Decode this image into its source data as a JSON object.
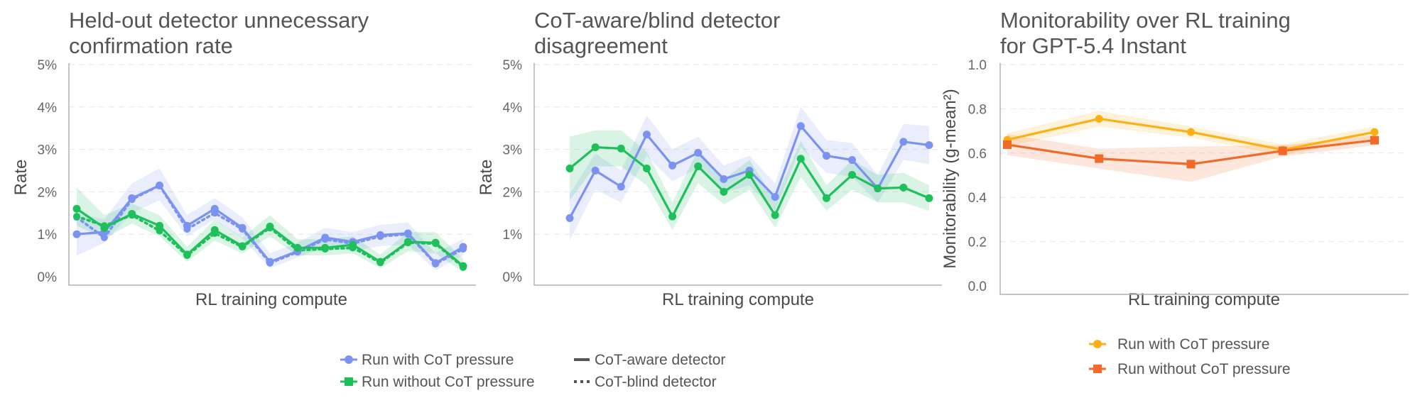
{
  "colors": {
    "blue": "#7b93ef",
    "green": "#1fbf5c",
    "yellow": "#fbb016",
    "orange": "#f26a2a",
    "legend_line": "#555555"
  },
  "chart_data": [
    {
      "type": "line",
      "title_lines": [
        "Held-out detector unnecessary",
        "confirmation rate"
      ],
      "xlabel": "RL training compute",
      "ylabel": "Rate",
      "ylim": [
        0,
        5
      ],
      "ytick_values": [
        0,
        1,
        2,
        3,
        4,
        5
      ],
      "ytick_labels": [
        "0%",
        "1%",
        "2%",
        "3%",
        "4%",
        "5%"
      ],
      "grid": "horizontal dashed",
      "x": [
        0,
        1,
        2,
        3,
        4,
        5,
        6,
        7,
        8,
        9,
        10,
        11,
        12,
        13,
        14
      ],
      "series": [
        {
          "color_key": "blue",
          "style": "solid",
          "marker": "circle",
          "values": [
            1.0,
            1.05,
            1.85,
            2.15,
            1.2,
            1.6,
            1.15,
            0.35,
            0.6,
            0.92,
            0.82,
            0.98,
            1.02,
            0.32,
            0.7
          ],
          "ci_low": [
            0.5,
            0.8,
            1.5,
            1.8,
            0.95,
            1.35,
            0.9,
            0.2,
            0.45,
            0.7,
            0.6,
            0.72,
            0.75,
            0.15,
            0.5
          ],
          "ci_high": [
            1.5,
            1.35,
            2.2,
            2.55,
            1.45,
            1.85,
            1.4,
            0.55,
            0.8,
            1.15,
            1.05,
            1.22,
            1.28,
            0.55,
            0.9
          ]
        },
        {
          "color_key": "blue",
          "style": "dotted",
          "marker": "circle",
          "values": [
            1.4,
            0.92,
            1.82,
            2.15,
            1.12,
            1.5,
            1.12,
            0.32,
            0.58,
            0.88,
            0.78,
            0.95,
            1.0,
            0.3,
            0.65
          ]
        },
        {
          "color_key": "green",
          "style": "solid",
          "marker": "circle",
          "values": [
            1.6,
            1.15,
            1.48,
            1.2,
            0.52,
            1.1,
            0.72,
            1.18,
            0.68,
            0.68,
            0.75,
            0.35,
            0.82,
            0.8,
            0.25
          ],
          "ci_low": [
            1.2,
            0.9,
            1.25,
            0.95,
            0.35,
            0.85,
            0.55,
            0.95,
            0.5,
            0.5,
            0.55,
            0.2,
            0.6,
            0.55,
            0.1
          ],
          "ci_high": [
            2.1,
            1.45,
            1.72,
            1.45,
            0.7,
            1.35,
            0.92,
            1.45,
            0.88,
            0.88,
            0.95,
            0.52,
            1.05,
            1.05,
            0.42
          ]
        },
        {
          "color_key": "green",
          "style": "dotted",
          "marker": "circle",
          "values": [
            1.42,
            1.2,
            1.45,
            1.08,
            0.5,
            1.02,
            0.7,
            1.15,
            0.62,
            0.65,
            0.68,
            0.33,
            0.8,
            0.78,
            0.22
          ]
        }
      ]
    },
    {
      "type": "line",
      "title_lines": [
        "CoT-aware/blind detector",
        "disagreement"
      ],
      "xlabel": "RL training compute",
      "ylabel": "Rate",
      "ylim": [
        0,
        5
      ],
      "ytick_values": [
        0,
        1,
        2,
        3,
        4,
        5
      ],
      "ytick_labels": [
        "0%",
        "1%",
        "2%",
        "3%",
        "4%",
        "5%"
      ],
      "grid": "horizontal dashed",
      "x": [
        0,
        1,
        2,
        3,
        4,
        5,
        6,
        7,
        8,
        9,
        10,
        11,
        12,
        13,
        14
      ],
      "series": [
        {
          "color_key": "blue",
          "style": "solid",
          "marker": "circle",
          "values": [
            1.38,
            2.5,
            2.12,
            3.35,
            2.62,
            2.92,
            2.3,
            2.5,
            1.88,
            3.55,
            2.85,
            2.75,
            2.08,
            3.18,
            3.1
          ],
          "ci_low": [
            0.85,
            2.05,
            1.75,
            2.85,
            2.25,
            2.55,
            1.98,
            2.15,
            1.55,
            3.05,
            2.45,
            2.35,
            1.75,
            2.75,
            2.65
          ],
          "ci_high": [
            1.95,
            2.9,
            2.5,
            3.8,
            3.0,
            3.3,
            2.62,
            2.85,
            2.2,
            4.0,
            3.22,
            3.15,
            2.4,
            3.6,
            3.55
          ]
        },
        {
          "color_key": "green",
          "style": "solid",
          "marker": "circle",
          "values": [
            2.55,
            3.05,
            3.02,
            2.55,
            1.42,
            2.6,
            2.0,
            2.4,
            1.45,
            2.78,
            1.85,
            2.4,
            2.08,
            2.1,
            1.85
          ],
          "ci_low": [
            1.8,
            2.6,
            2.6,
            2.15,
            1.1,
            2.2,
            1.7,
            2.05,
            1.15,
            2.35,
            1.55,
            2.05,
            1.75,
            1.75,
            1.55
          ],
          "ci_high": [
            3.3,
            3.45,
            3.45,
            2.95,
            1.75,
            3.0,
            2.3,
            2.75,
            1.8,
            3.2,
            2.15,
            2.75,
            2.4,
            2.45,
            2.15
          ]
        }
      ]
    },
    {
      "type": "line",
      "title_lines": [
        "Monitorability over RL training",
        "for GPT-5.4 Instant"
      ],
      "xlabel": "RL training compute",
      "ylabel": "Monitorability (g-mean²)",
      "ylim": [
        0,
        1
      ],
      "ytick_values": [
        0,
        0.2,
        0.4,
        0.6,
        0.8,
        1.0
      ],
      "ytick_labels": [
        "0.0",
        "0.2",
        "0.4",
        "0.6",
        "0.8",
        "1.0"
      ],
      "grid": "horizontal dashed",
      "x": [
        0,
        1,
        2,
        3,
        4
      ],
      "series": [
        {
          "name": "Run with CoT pressure",
          "color_key": "yellow",
          "style": "solid",
          "marker": "circle",
          "values": [
            0.66,
            0.755,
            0.695,
            0.615,
            0.695
          ],
          "ci_low": [
            0.63,
            0.72,
            0.67,
            0.59,
            0.67
          ],
          "ci_high": [
            0.69,
            0.79,
            0.72,
            0.64,
            0.72
          ]
        },
        {
          "name": "Run without CoT pressure",
          "color_key": "orange",
          "style": "solid",
          "marker": "square",
          "values": [
            0.638,
            0.575,
            0.55,
            0.61,
            0.658
          ],
          "ci_low": [
            0.59,
            0.53,
            0.47,
            0.585,
            0.635
          ],
          "ci_high": [
            0.685,
            0.62,
            0.63,
            0.635,
            0.68
          ]
        }
      ]
    }
  ],
  "legend_left": {
    "items": [
      {
        "label": "Run with CoT pressure",
        "kind": "marker-line",
        "color_key": "blue",
        "marker": "circle"
      },
      {
        "label": "Run without CoT pressure",
        "kind": "marker-line",
        "color_key": "green",
        "marker": "square"
      },
      {
        "label": "CoT-aware detector",
        "kind": "solid-line",
        "color_key": "legend_line"
      },
      {
        "label": "CoT-blind detector",
        "kind": "dotted-line",
        "color_key": "legend_line"
      }
    ]
  },
  "legend_right": {
    "items": [
      {
        "label": "Run with CoT pressure",
        "kind": "marker-line",
        "color_key": "yellow",
        "marker": "circle"
      },
      {
        "label": "Run without CoT pressure",
        "kind": "marker-line",
        "color_key": "orange",
        "marker": "square"
      }
    ]
  }
}
